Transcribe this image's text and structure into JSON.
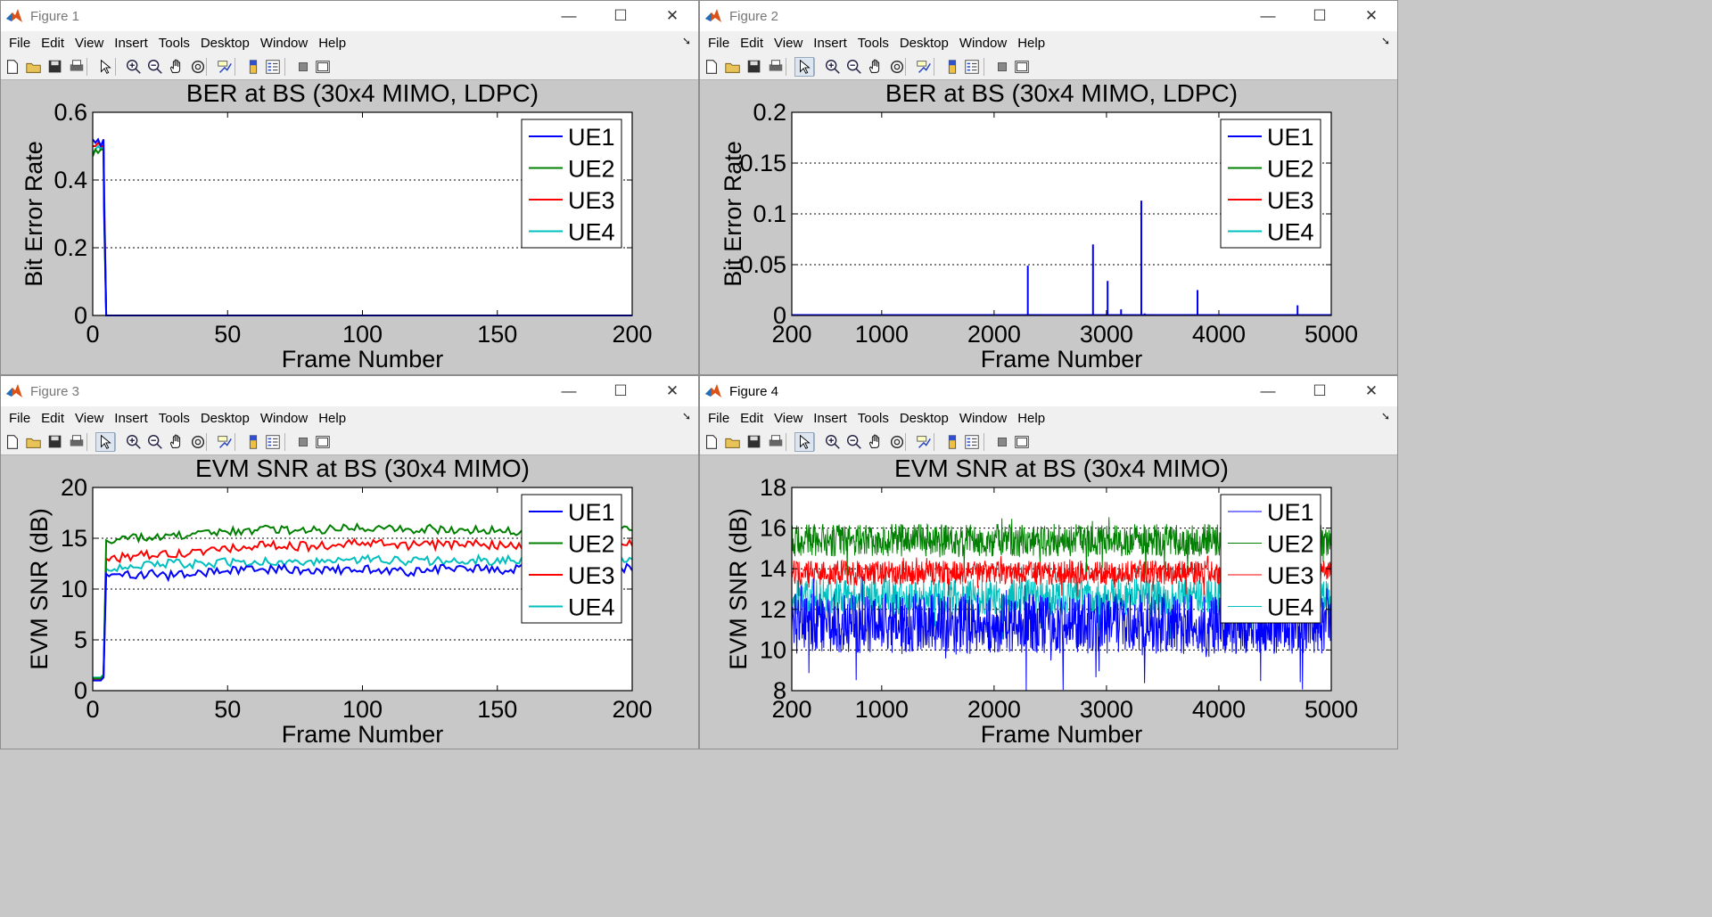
{
  "menu": [
    "File",
    "Edit",
    "View",
    "Insert",
    "Tools",
    "Desktop",
    "Window",
    "Help"
  ],
  "window_controls": {
    "minimize": "—",
    "maximize": "☐",
    "close": "✕"
  },
  "toolbar_icons": [
    "new-figure-icon",
    "open-file-icon",
    "save-icon",
    "print-icon",
    "edit-plot-icon",
    "zoom-in-icon",
    "zoom-out-icon",
    "pan-icon",
    "rotate-3d-icon",
    "data-cursor-icon",
    "colorbar-icon",
    "legend-icon",
    "hide-plot-tools-icon",
    "show-plot-tools-icon"
  ],
  "colors": {
    "UE1": "#0000ff",
    "UE2": "#008000",
    "UE3": "#ff0000",
    "UE4": "#00bfbf",
    "window_bg": "#c8c8c8",
    "plot_bg": "#ffffff"
  },
  "windows": [
    {
      "title": "Figure 1",
      "active_tool": null,
      "chart_data": {
        "type": "line",
        "title": "BER at BS (30x4 MIMO, LDPC)",
        "xlabel": "Frame Number",
        "ylabel": "Bit Error Rate",
        "xlim": [
          0,
          200
        ],
        "ylim": [
          0,
          0.6
        ],
        "xticks": [
          0,
          50,
          100,
          150,
          200
        ],
        "yticks": [
          0,
          0.2,
          0.4,
          0.6
        ],
        "ytick_labels": [
          "0",
          "0.2",
          "0.4",
          "0.6"
        ],
        "grid": "y-dotted",
        "legend_position": "top-right",
        "line_width": "thick",
        "series": [
          {
            "name": "UE1",
            "x": [
              0,
              1,
              2,
              3,
              4,
              4.2,
              4.6,
              5,
              200
            ],
            "y": [
              0.52,
              0.51,
              0.52,
              0.5,
              0.52,
              0.33,
              0.17,
              0,
              0
            ]
          },
          {
            "name": "UE2",
            "x": [
              0,
              1,
              2,
              3,
              4,
              4.2,
              5,
              200
            ],
            "y": [
              0.47,
              0.49,
              0.48,
              0.49,
              0.49,
              0.3,
              0,
              0
            ]
          },
          {
            "name": "UE3",
            "x": [
              0,
              1,
              2,
              3,
              4,
              4.3,
              5,
              200
            ],
            "y": [
              0.5,
              0.5,
              0.51,
              0.5,
              0.5,
              0.32,
              0,
              0
            ]
          },
          {
            "name": "UE4",
            "x": [
              0,
              1,
              2,
              3,
              4,
              4.5,
              5,
              200
            ],
            "y": [
              0.48,
              0.49,
              0.5,
              0.49,
              0.5,
              0.25,
              0,
              0
            ]
          }
        ]
      }
    },
    {
      "title": "Figure 2",
      "active_tool": "edit-plot-icon",
      "chart_data": {
        "type": "line",
        "title": "BER at BS (30x4 MIMO, LDPC)",
        "xlabel": "Frame Number",
        "ylabel": "Bit Error Rate",
        "xlim": [
          200,
          5000
        ],
        "ylim": [
          0,
          0.2
        ],
        "xticks": [
          200,
          1000,
          2000,
          3000,
          4000,
          5000
        ],
        "yticks": [
          0,
          0.05,
          0.1,
          0.15,
          0.2
        ],
        "ytick_labels": [
          "0",
          "0.05",
          "0.1",
          "0.15",
          "0.2"
        ],
        "grid": "y-dotted",
        "legend_position": "top-right",
        "line_width": "thick",
        "spikes_series": "UE1",
        "series": [
          {
            "name": "UE1",
            "spikes": [
              [
                2300,
                0.049
              ],
              [
                2880,
                0.07
              ],
              [
                3010,
                0.034
              ],
              [
                3130,
                0.006
              ],
              [
                3310,
                0.113
              ],
              [
                3340,
                0.002
              ],
              [
                3810,
                0.025
              ],
              [
                4310,
                0.001
              ],
              [
                4700,
                0.01
              ]
            ]
          },
          {
            "name": "UE2",
            "spikes": []
          },
          {
            "name": "UE3",
            "spikes": []
          },
          {
            "name": "UE4",
            "spikes": []
          }
        ]
      }
    },
    {
      "title": "Figure 3",
      "active_tool": "edit-plot-icon",
      "chart_data": {
        "type": "line",
        "title": "EVM SNR at BS (30x4 MIMO)",
        "xlabel": "Frame Number",
        "ylabel": "EVM SNR (dB)",
        "xlim": [
          0,
          200
        ],
        "ylim": [
          0,
          20
        ],
        "xticks": [
          0,
          50,
          100,
          150,
          200
        ],
        "yticks": [
          0,
          5,
          10,
          15,
          20
        ],
        "ytick_labels": [
          "0",
          "5",
          "10",
          "15",
          "20"
        ],
        "grid": "y-dotted",
        "legend_position": "top-right",
        "line_width": "thick",
        "series": [
          {
            "name": "UE1",
            "x": [
              0,
              3,
              4,
              5,
              10,
              20,
              30,
              40,
              50,
              60,
              70,
              80,
              90,
              100,
              110,
              120,
              130,
              140,
              150,
              160,
              170,
              180,
              190,
              200
            ],
            "y": [
              1.0,
              1.0,
              1.3,
              11.5,
              11.3,
              11.5,
              11.3,
              11.5,
              11.9,
              11.8,
              12.0,
              11.8,
              11.9,
              12.0,
              11.8,
              11.7,
              12.0,
              12.0,
              11.9,
              12.0,
              12.1,
              11.9,
              12.0,
              12.1
            ]
          },
          {
            "name": "UE2",
            "x": [
              0,
              3,
              4,
              5,
              10,
              20,
              30,
              40,
              50,
              60,
              70,
              80,
              90,
              100,
              110,
              120,
              130,
              140,
              150,
              160,
              170,
              180,
              190,
              200
            ],
            "y": [
              1.2,
              1.2,
              1.5,
              14.8,
              15.0,
              15.1,
              15.2,
              15.4,
              15.7,
              15.8,
              15.9,
              15.8,
              16.0,
              16.1,
              16.0,
              15.9,
              15.9,
              15.8,
              15.8,
              15.7,
              15.8,
              15.9,
              15.8,
              16.0
            ]
          },
          {
            "name": "UE3",
            "x": [
              0,
              3,
              4,
              5,
              10,
              20,
              30,
              40,
              50,
              60,
              70,
              80,
              90,
              100,
              110,
              120,
              130,
              140,
              150,
              160,
              170,
              180,
              190,
              200
            ],
            "y": [
              1.1,
              1.1,
              1.4,
              13.0,
              13.1,
              13.3,
              13.4,
              13.6,
              14.0,
              14.2,
              14.3,
              14.2,
              14.4,
              14.5,
              14.4,
              14.3,
              14.4,
              14.4,
              14.3,
              14.3,
              14.4,
              14.4,
              14.3,
              14.4
            ]
          },
          {
            "name": "UE4",
            "x": [
              0,
              3,
              4,
              5,
              10,
              20,
              30,
              40,
              50,
              60,
              70,
              80,
              90,
              100,
              110,
              120,
              130,
              140,
              150,
              160,
              170,
              180,
              190,
              200
            ],
            "y": [
              1.3,
              1.3,
              1.6,
              12.0,
              12.2,
              12.4,
              12.5,
              12.4,
              12.6,
              12.7,
              12.7,
              12.6,
              12.8,
              12.9,
              12.8,
              12.7,
              12.8,
              12.9,
              12.8,
              12.8,
              12.9,
              12.8,
              12.9,
              13.0
            ]
          }
        ]
      }
    },
    {
      "title": "Figure 4",
      "active_tool": "edit-plot-icon",
      "chart_data": {
        "type": "line",
        "title": "EVM SNR at BS (30x4 MIMO)",
        "xlabel": "Frame Number",
        "ylabel": "EVM SNR (dB)",
        "xlim": [
          200,
          5000
        ],
        "ylim": [
          8,
          18
        ],
        "xticks": [
          200,
          1000,
          2000,
          3000,
          4000,
          5000
        ],
        "yticks": [
          8,
          10,
          12,
          14,
          16,
          18
        ],
        "ytick_labels": [
          "8",
          "10",
          "12",
          "14",
          "16",
          "18"
        ],
        "grid": "y-dotted",
        "legend_position": "top-right",
        "line_width": "thin",
        "noise_samples": 1200,
        "series": [
          {
            "name": "UE1",
            "mean": 11.3,
            "spread": 1.5,
            "dip": 2.8
          },
          {
            "name": "UE2",
            "mean": 15.4,
            "spread": 0.8,
            "dip": 1.2
          },
          {
            "name": "UE3",
            "mean": 13.8,
            "spread": 0.6,
            "dip": 0.9
          },
          {
            "name": "UE4",
            "mean": 12.6,
            "spread": 0.9,
            "dip": 1.5
          }
        ]
      }
    }
  ]
}
